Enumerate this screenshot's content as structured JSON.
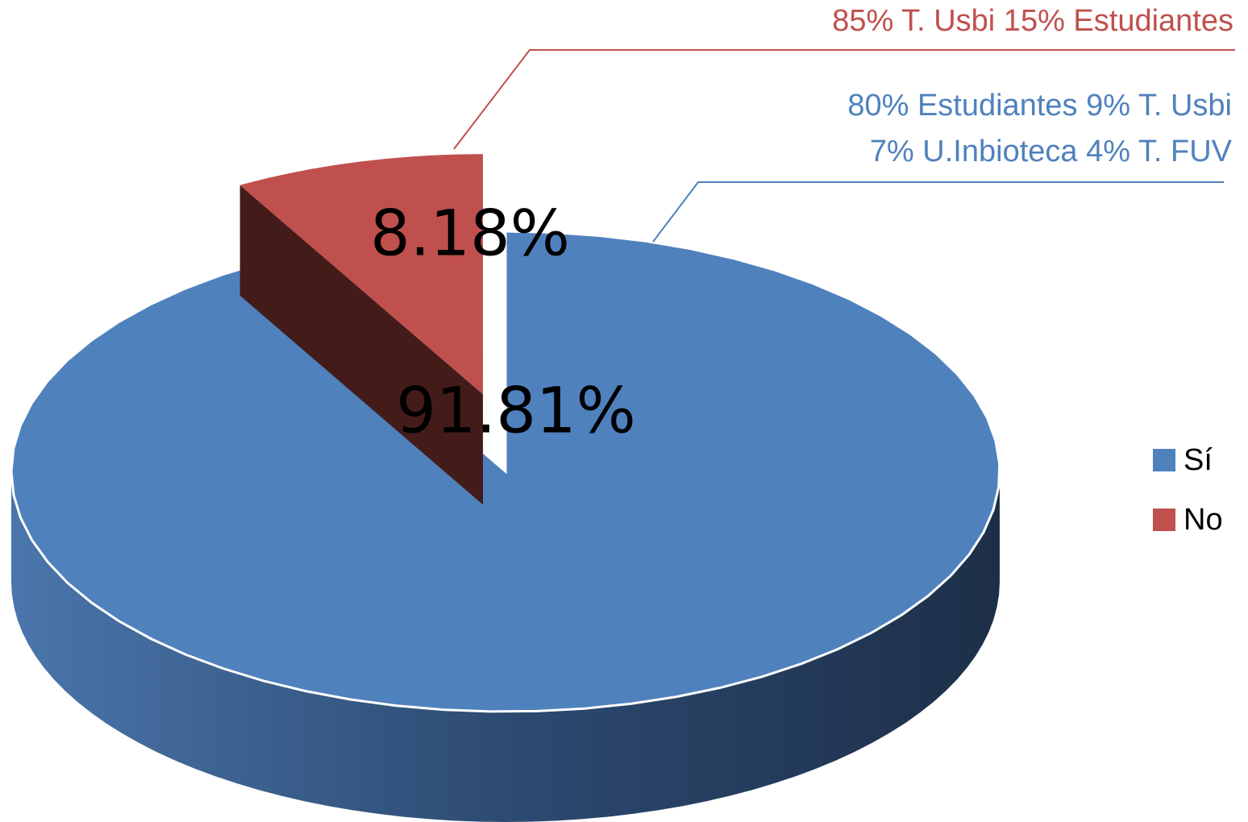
{
  "chart_data": {
    "type": "pie",
    "categories": [
      "Sí",
      "No"
    ],
    "values": [
      91.81,
      8.18
    ],
    "value_labels": [
      "91.81%",
      "8.18%"
    ],
    "colors": [
      "#4f81bd",
      "#c0504d"
    ],
    "annotations": [
      "85% T. Usbi  15% Estudiantes",
      "80% Estudiantes 9% T. Usbi",
      "7% U.Inbioteca 4% T. FUV"
    ],
    "legend": "right"
  }
}
